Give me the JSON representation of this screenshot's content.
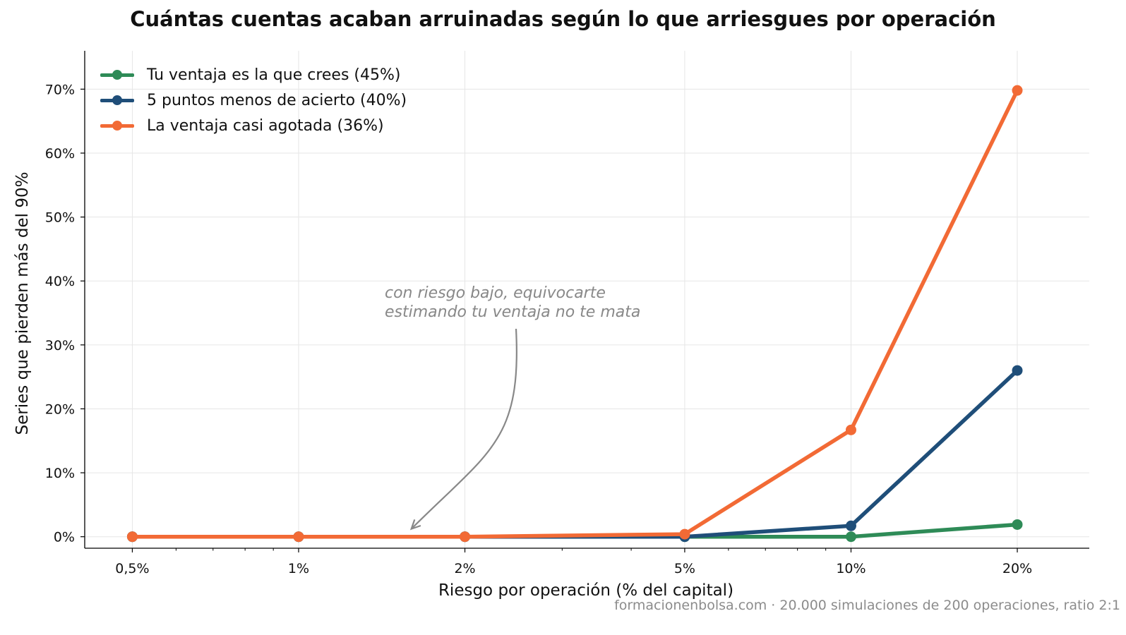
{
  "chart_data": {
    "type": "line",
    "title": "Cuántas cuentas acaban arruinadas según lo que arriesgues por operación",
    "xlabel": "Riesgo por operación (% del capital)",
    "ylabel": "Series que pierden más del 90%",
    "x_scale": "log",
    "x": [
      0.5,
      1,
      2,
      5,
      10,
      20
    ],
    "x_tick_labels": [
      "0,5%",
      "1%",
      "2%",
      "5%",
      "10%",
      "20%"
    ],
    "y_ticks": [
      0,
      10,
      20,
      30,
      40,
      50,
      60,
      70
    ],
    "y_tick_labels": [
      "0%",
      "10%",
      "20%",
      "30%",
      "40%",
      "50%",
      "60%",
      "70%"
    ],
    "ylim": [
      -1.8,
      76
    ],
    "xlim": [
      0.41,
      27
    ],
    "grid": true,
    "legend_position": "top-left",
    "series": [
      {
        "name": "Tu ventaja es la que crees (45%)",
        "color": "#2e8b57",
        "values": [
          0,
          0,
          0,
          0,
          0,
          1.9
        ]
      },
      {
        "name": "5 puntos menos de acierto (40%)",
        "color": "#1f4e79",
        "values": [
          0,
          0,
          0,
          0,
          1.7,
          26
        ]
      },
      {
        "name": "La ventaja casi agotada (36%)",
        "color": "#f26a35",
        "values": [
          0,
          0,
          0,
          0.4,
          16.7,
          69.8
        ]
      }
    ],
    "annotation": {
      "line1": "con riesgo bajo, equivocarte",
      "line2": "estimando tu ventaja no te mata",
      "points_to_x": 1.6,
      "points_to_y": 1
    },
    "source": "formacionenbolsa.com · 20.000 simulaciones de 200 operaciones, ratio 2:1"
  }
}
